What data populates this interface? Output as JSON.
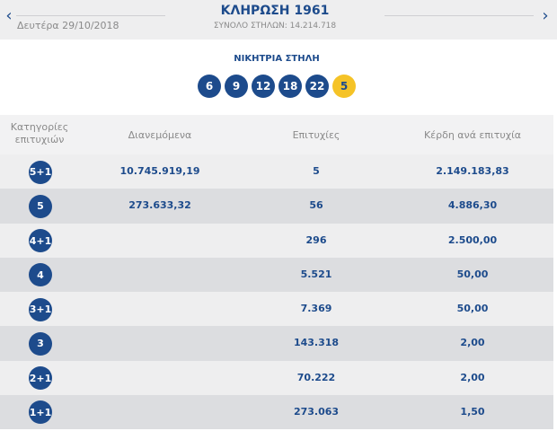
{
  "header": {
    "date": "Δευτέρα 29/10/2018",
    "title": "ΚΛΗΡΩΣΗ 1961",
    "subtitle": "ΣΥΝΟΛΟ ΣΤΗΛΩΝ: 14.214.718",
    "prev_label": "‹",
    "next_label": "›"
  },
  "winning": {
    "title": "ΝΙΚΗΤΡΙΑ ΣΤΗΛΗ",
    "numbers": [
      "6",
      "9",
      "12",
      "18",
      "22"
    ],
    "joker": "5"
  },
  "colors": {
    "primary": "#1d4b8c",
    "joker": "#f5c327",
    "row_light": "#eeeeef",
    "row_dark": "#dcdde0"
  },
  "table": {
    "headers": {
      "category_line1": "Κατηγορίες",
      "category_line2": "επιτυχιών",
      "distributed": "Διανεμόμενα",
      "winners": "Επιτυχίες",
      "prize": "Κέρδη ανά επιτυχία"
    },
    "rows": [
      {
        "category": "5+1",
        "distributed": "10.745.919,19",
        "winners": "5",
        "prize": "2.149.183,83"
      },
      {
        "category": "5",
        "distributed": "273.633,32",
        "winners": "56",
        "prize": "4.886,30"
      },
      {
        "category": "4+1",
        "distributed": "",
        "winners": "296",
        "prize": "2.500,00"
      },
      {
        "category": "4",
        "distributed": "",
        "winners": "5.521",
        "prize": "50,00"
      },
      {
        "category": "3+1",
        "distributed": "",
        "winners": "7.369",
        "prize": "50,00"
      },
      {
        "category": "3",
        "distributed": "",
        "winners": "143.318",
        "prize": "2,00"
      },
      {
        "category": "2+1",
        "distributed": "",
        "winners": "70.222",
        "prize": "2,00"
      },
      {
        "category": "1+1",
        "distributed": "",
        "winners": "273.063",
        "prize": "1,50"
      }
    ]
  }
}
